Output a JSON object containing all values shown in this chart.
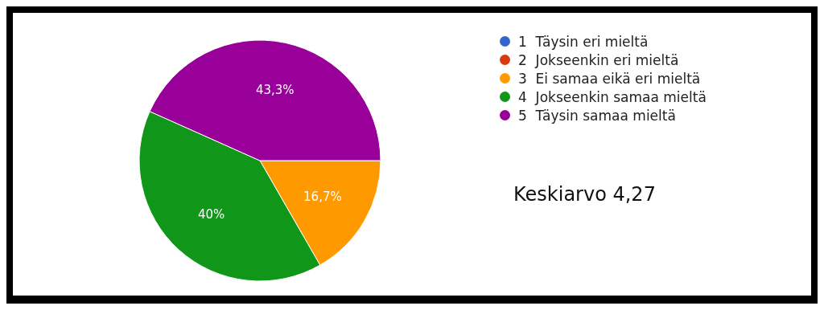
{
  "chart_data": {
    "type": "pie",
    "categories": [
      "1  Täysin eri mieltä",
      "2  Jokseenkin eri mieltä",
      "3  Ei samaa eikä eri mieltä",
      "4  Jokseenkin samaa mieltä",
      "5  Täysin samaa mieltä"
    ],
    "values": [
      0,
      0,
      16.7,
      40,
      43.3
    ],
    "colors": [
      "#3366cc",
      "#dc3912",
      "#ff9900",
      "#109618",
      "#990099"
    ],
    "value_labels": [
      null,
      null,
      "16,7%",
      "40%",
      "43,3%"
    ],
    "legend": "right",
    "annotations": [
      "Keskiarvo 4,27"
    ]
  }
}
